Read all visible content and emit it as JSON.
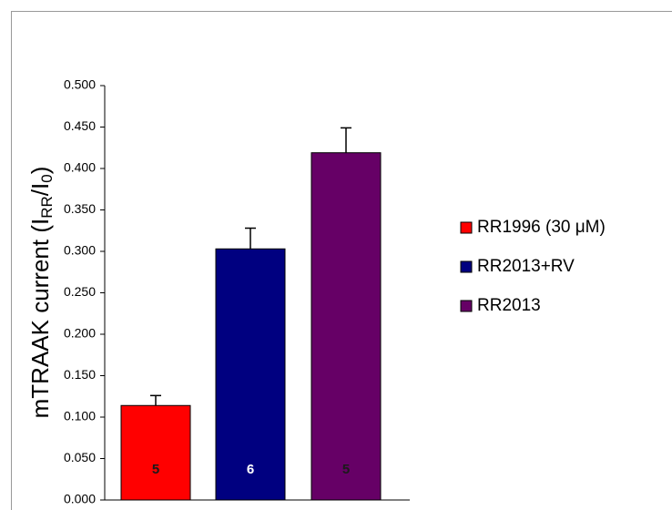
{
  "chart_data": {
    "type": "bar",
    "ylabel": {
      "start": "mTRAAK current (I",
      "sub1": "RR",
      "mid": "/I",
      "sub2": "0",
      "end": ")"
    },
    "ylim": [
      0,
      0.5
    ],
    "yticks": [
      {
        "value": 0,
        "label": "0.000"
      },
      {
        "value": 0.05,
        "label": "0.050"
      },
      {
        "value": 0.1,
        "label": "0.100"
      },
      {
        "value": 0.15,
        "label": "0.150"
      },
      {
        "value": 0.2,
        "label": "0.200"
      },
      {
        "value": 0.25,
        "label": "0.250"
      },
      {
        "value": 0.3,
        "label": "0.300"
      },
      {
        "value": 0.35,
        "label": "0.350"
      },
      {
        "value": 0.4,
        "label": "0.400"
      },
      {
        "value": 0.45,
        "label": "0.450"
      },
      {
        "value": 0.5,
        "label": "0.500"
      }
    ],
    "series": [
      {
        "name": "RR1996 (30 μM)",
        "color": "#ff0000",
        "label_color": "#1a1a1a",
        "values": [
          0.114
        ],
        "errors": [
          0.012
        ],
        "n": [
          5
        ]
      },
      {
        "name": "RR2013+RV",
        "color": "#000080",
        "label_color": "#ffffff",
        "values": [
          0.303
        ],
        "errors": [
          0.025
        ],
        "n": [
          6
        ]
      },
      {
        "name": "RR2013",
        "color": "#660066",
        "label_color": "#1a1a1a",
        "values": [
          0.419
        ],
        "errors": [
          0.03
        ],
        "n": [
          5
        ]
      }
    ],
    "legend": "right"
  }
}
